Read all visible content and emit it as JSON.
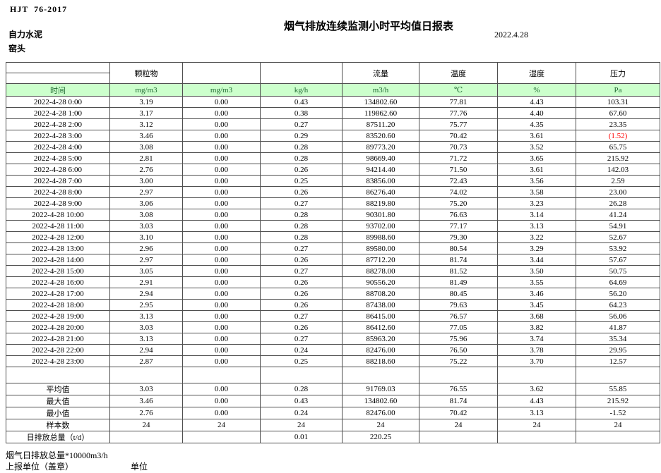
{
  "page": {
    "standard": "HJT  76-2017",
    "title": "烟气排放连续监测小时平均值日报表",
    "date": "2022.4.28",
    "company": "自力水泥",
    "location": "窑头"
  },
  "table": {
    "group_headers": [
      "",
      "颗粒物",
      "",
      "",
      "流量",
      "温度",
      "湿度",
      "压力"
    ],
    "unit_row": [
      "时间",
      "mg/m3",
      "mg/m3",
      "kg/h",
      "m3/h",
      "℃",
      "%",
      "Pa"
    ],
    "rows": [
      [
        "2022-4-28 0:00",
        "3.19",
        "0.00",
        "0.43",
        "134802.60",
        "77.81",
        "4.43",
        "103.31"
      ],
      [
        "2022-4-28 1:00",
        "3.17",
        "0.00",
        "0.38",
        "119862.60",
        "77.76",
        "4.40",
        "67.60"
      ],
      [
        "2022-4-28 2:00",
        "3.12",
        "0.00",
        "0.27",
        "87511.20",
        "75.77",
        "4.35",
        "23.35"
      ],
      [
        "2022-4-28 3:00",
        "3.46",
        "0.00",
        "0.29",
        "83520.60",
        "70.42",
        "3.61",
        "(1.52)"
      ],
      [
        "2022-4-28 4:00",
        "3.08",
        "0.00",
        "0.28",
        "89773.20",
        "70.73",
        "3.52",
        "65.75"
      ],
      [
        "2022-4-28 5:00",
        "2.81",
        "0.00",
        "0.28",
        "98669.40",
        "71.72",
        "3.65",
        "215.92"
      ],
      [
        "2022-4-28 6:00",
        "2.76",
        "0.00",
        "0.26",
        "94214.40",
        "71.50",
        "3.61",
        "142.03"
      ],
      [
        "2022-4-28 7:00",
        "3.00",
        "0.00",
        "0.25",
        "83856.00",
        "72.43",
        "3.56",
        "2.59"
      ],
      [
        "2022-4-28 8:00",
        "2.97",
        "0.00",
        "0.26",
        "86276.40",
        "74.02",
        "3.58",
        "23.00"
      ],
      [
        "2022-4-28 9:00",
        "3.06",
        "0.00",
        "0.27",
        "88219.80",
        "75.20",
        "3.23",
        "26.28"
      ],
      [
        "2022-4-28 10:00",
        "3.08",
        "0.00",
        "0.28",
        "90301.80",
        "76.63",
        "3.14",
        "41.24"
      ],
      [
        "2022-4-28 11:00",
        "3.03",
        "0.00",
        "0.28",
        "93702.00",
        "77.17",
        "3.13",
        "54.91"
      ],
      [
        "2022-4-28 12:00",
        "3.10",
        "0.00",
        "0.28",
        "89988.60",
        "79.30",
        "3.22",
        "52.67"
      ],
      [
        "2022-4-28 13:00",
        "2.96",
        "0.00",
        "0.27",
        "89580.00",
        "80.54",
        "3.29",
        "53.92"
      ],
      [
        "2022-4-28 14:00",
        "2.97",
        "0.00",
        "0.26",
        "87712.20",
        "81.74",
        "3.44",
        "57.67"
      ],
      [
        "2022-4-28 15:00",
        "3.05",
        "0.00",
        "0.27",
        "88278.00",
        "81.52",
        "3.50",
        "50.75"
      ],
      [
        "2022-4-28 16:00",
        "2.91",
        "0.00",
        "0.26",
        "90556.20",
        "81.49",
        "3.55",
        "64.69"
      ],
      [
        "2022-4-28 17:00",
        "2.94",
        "0.00",
        "0.26",
        "88708.20",
        "80.45",
        "3.46",
        "56.20"
      ],
      [
        "2022-4-28 18:00",
        "2.95",
        "0.00",
        "0.26",
        "87438.00",
        "79.63",
        "3.45",
        "64.23"
      ],
      [
        "2022-4-28 19:00",
        "3.13",
        "0.00",
        "0.27",
        "86415.00",
        "76.57",
        "3.68",
        "56.06"
      ],
      [
        "2022-4-28 20:00",
        "3.03",
        "0.00",
        "0.26",
        "86412.60",
        "77.05",
        "3.82",
        "41.87"
      ],
      [
        "2022-4-28 21:00",
        "3.13",
        "0.00",
        "0.27",
        "85963.20",
        "75.96",
        "3.74",
        "35.34"
      ],
      [
        "2022-4-28 22:00",
        "2.94",
        "0.00",
        "0.24",
        "82476.00",
        "76.50",
        "3.78",
        "29.95"
      ],
      [
        "2022-4-28 23:00",
        "2.87",
        "0.00",
        "0.25",
        "88218.60",
        "75.22",
        "3.70",
        "12.57"
      ]
    ],
    "summary": [
      {
        "label": "",
        "values": [
          "",
          "",
          "",
          "",
          "",
          "",
          ""
        ]
      },
      {
        "label": "平均值",
        "values": [
          "3.03",
          "0.00",
          "0.28",
          "91769.03",
          "76.55",
          "3.62",
          "55.85"
        ]
      },
      {
        "label": "最大值",
        "values": [
          "3.46",
          "0.00",
          "0.43",
          "134802.60",
          "81.74",
          "4.43",
          "215.92"
        ]
      },
      {
        "label": "最小值",
        "values": [
          "2.76",
          "0.00",
          "0.24",
          "82476.00",
          "70.42",
          "3.13",
          "-1.52"
        ]
      },
      {
        "label": "样本数",
        "values": [
          "24",
          "24",
          "24",
          "24",
          "24",
          "24",
          "24"
        ]
      },
      {
        "label": "日排放总量（t/d）",
        "values": [
          "",
          "",
          "0.01",
          "220.25",
          "",
          "",
          ""
        ]
      }
    ]
  },
  "footer": {
    "note": "烟气日排放总量*10000m3/h",
    "report_unit": "上报单位（盖章）",
    "unit_label": "单位"
  },
  "colors": {
    "unit_row_bg": "#ccffcc",
    "unit_row_text": "#1f6b32",
    "negative_value_red": "#ff0000"
  }
}
